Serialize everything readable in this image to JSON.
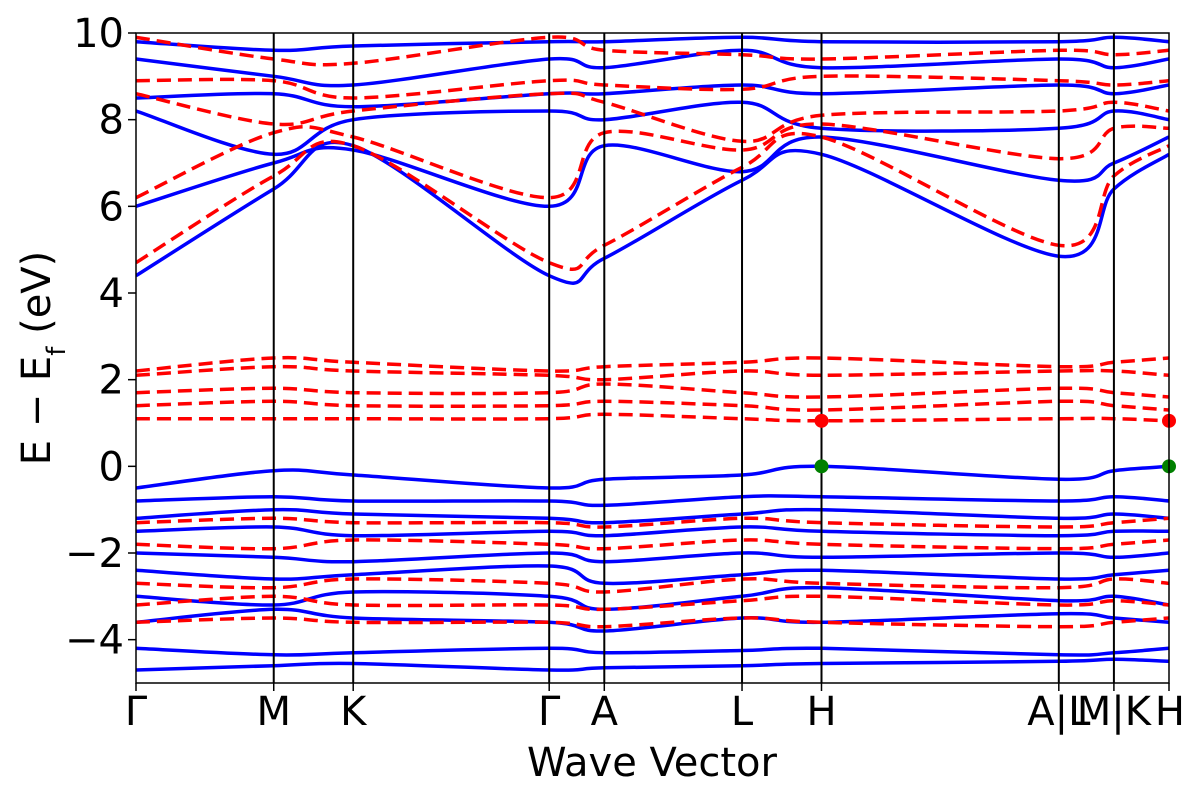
{
  "chart_data": {
    "type": "line",
    "xlabel": "Wave Vector",
    "ylabel_main": "E − E",
    "ylabel_sub": "f",
    "ylabel_unit": " (eV)",
    "ylim": [
      -5,
      10
    ],
    "yticks": [
      -4,
      -2,
      0,
      2,
      4,
      6,
      8,
      10
    ],
    "ytick_labels": [
      "−4",
      "−2",
      "0",
      "2",
      "4",
      "6",
      "8",
      "10"
    ],
    "kpath_positions": [
      0,
      1.0,
      1.577,
      3.0,
      3.4,
      4.4,
      4.977,
      6.7,
      7.1,
      7.5
    ],
    "kpoint_labels": [
      "Γ",
      "M",
      "K",
      "Γ",
      "A",
      "L",
      "H",
      "A|L",
      "M|K",
      "H"
    ],
    "grid": false,
    "legend": "none",
    "colors": {
      "spin_up": "#0000ff",
      "spin_down": "#ff0000",
      "cbm_marker": "#ff0000",
      "vbm_marker": "#008000"
    },
    "series": [
      {
        "style": "solid",
        "bands": [
          {
            "x": [
              0,
              1.0,
              1.577,
              3.0,
              3.4,
              4.4,
              4.977,
              6.7,
              7.1,
              7.5
            ],
            "y": [
              -4.7,
              -4.6,
              -4.55,
              -4.7,
              -4.65,
              -4.6,
              -4.55,
              -4.5,
              -4.45,
              -4.5
            ]
          },
          {
            "x": [
              0,
              1.0,
              1.577,
              3.0,
              3.4,
              4.4,
              4.977,
              6.7,
              7.1,
              7.5
            ],
            "y": [
              -4.2,
              -4.35,
              -4.3,
              -4.2,
              -4.3,
              -4.25,
              -4.2,
              -4.35,
              -4.3,
              -4.2
            ]
          },
          {
            "x": [
              0,
              1.0,
              1.577,
              3.0,
              3.4,
              4.4,
              4.977,
              6.7,
              7.1,
              7.5
            ],
            "y": [
              -3.6,
              -3.3,
              -3.5,
              -3.6,
              -3.8,
              -3.5,
              -3.6,
              -3.4,
              -3.5,
              -3.6
            ]
          },
          {
            "x": [
              0,
              1.0,
              1.577,
              3.0,
              3.4,
              4.4,
              4.977,
              6.7,
              7.1,
              7.5
            ],
            "y": [
              -3.0,
              -3.2,
              -2.9,
              -3.0,
              -3.3,
              -3.0,
              -2.8,
              -3.1,
              -3.0,
              -3.2
            ]
          },
          {
            "x": [
              0,
              1.0,
              1.577,
              3.0,
              3.4,
              4.4,
              4.977,
              6.7,
              7.1,
              7.5
            ],
            "y": [
              -2.4,
              -2.6,
              -2.5,
              -2.3,
              -2.7,
              -2.5,
              -2.4,
              -2.6,
              -2.5,
              -2.4
            ]
          },
          {
            "x": [
              0,
              1.0,
              1.577,
              3.0,
              3.4,
              4.4,
              4.977,
              6.7,
              7.1,
              7.5
            ],
            "y": [
              -2.0,
              -2.1,
              -2.2,
              -2.0,
              -2.2,
              -2.0,
              -2.1,
              -2.0,
              -2.1,
              -2.0
            ]
          },
          {
            "x": [
              0,
              1.0,
              1.577,
              3.0,
              3.4,
              4.4,
              4.977,
              6.7,
              7.1,
              7.5
            ],
            "y": [
              -1.5,
              -1.4,
              -1.6,
              -1.5,
              -1.6,
              -1.4,
              -1.5,
              -1.6,
              -1.5,
              -1.5
            ]
          },
          {
            "x": [
              0,
              1.0,
              1.577,
              3.0,
              3.4,
              4.4,
              4.977,
              6.7,
              7.1,
              7.5
            ],
            "y": [
              -1.2,
              -1.0,
              -1.1,
              -1.2,
              -1.3,
              -1.1,
              -1.0,
              -1.2,
              -1.1,
              -1.2
            ]
          },
          {
            "x": [
              0,
              1.0,
              1.577,
              3.0,
              3.4,
              4.4,
              4.977,
              6.7,
              7.1,
              7.5
            ],
            "y": [
              -0.8,
              -0.7,
              -0.8,
              -0.8,
              -0.9,
              -0.7,
              -0.7,
              -0.8,
              -0.7,
              -0.8
            ]
          },
          {
            "x": [
              0,
              1.0,
              1.577,
              3.0,
              3.4,
              4.4,
              4.977,
              6.7,
              7.1,
              7.5
            ],
            "y": [
              -0.5,
              -0.1,
              -0.2,
              -0.5,
              -0.3,
              -0.2,
              0.0,
              -0.3,
              -0.1,
              0.0
            ]
          },
          {
            "x": [
              0,
              1.0,
              1.577,
              3.0,
              3.4,
              4.4,
              4.977,
              6.7,
              7.1,
              7.5
            ],
            "y": [
              4.4,
              6.4,
              7.4,
              4.4,
              4.8,
              6.6,
              7.2,
              4.85,
              6.4,
              7.2
            ]
          },
          {
            "x": [
              0,
              1.0,
              1.577,
              3.0,
              3.4,
              4.4,
              4.977,
              6.7,
              7.1,
              7.5
            ],
            "y": [
              6.0,
              7.0,
              7.3,
              6.0,
              7.4,
              6.8,
              7.6,
              6.6,
              7.0,
              7.6
            ]
          },
          {
            "x": [
              0,
              1.0,
              1.577,
              3.0,
              3.4,
              4.4,
              4.977,
              6.7,
              7.1,
              7.5
            ],
            "y": [
              8.2,
              7.2,
              8.0,
              8.2,
              8.0,
              8.4,
              7.8,
              7.8,
              8.2,
              8.0
            ]
          },
          {
            "x": [
              0,
              1.0,
              1.577,
              3.0,
              3.4,
              4.4,
              4.977,
              6.7,
              7.1,
              7.5
            ],
            "y": [
              8.5,
              8.6,
              8.3,
              8.6,
              8.6,
              8.8,
              8.6,
              8.8,
              8.6,
              8.8
            ]
          },
          {
            "x": [
              0,
              1.0,
              1.577,
              3.0,
              3.4,
              4.4,
              4.977,
              6.7,
              7.1,
              7.5
            ],
            "y": [
              9.4,
              9.0,
              8.8,
              9.4,
              9.2,
              9.6,
              9.2,
              9.4,
              9.2,
              9.4
            ]
          },
          {
            "x": [
              0,
              1.0,
              1.577,
              3.0,
              3.4,
              4.4,
              4.977,
              6.7,
              7.1,
              7.5
            ],
            "y": [
              9.8,
              9.6,
              9.7,
              9.8,
              9.8,
              9.9,
              9.8,
              9.8,
              9.9,
              9.8
            ]
          }
        ]
      },
      {
        "style": "dashed",
        "bands": [
          {
            "x": [
              0,
              1.0,
              1.577,
              3.0,
              3.4,
              4.4,
              4.977,
              6.7,
              7.1,
              7.5
            ],
            "y": [
              -3.6,
              -3.5,
              -3.6,
              -3.6,
              -3.7,
              -3.5,
              -3.6,
              -3.7,
              -3.6,
              -3.5
            ]
          },
          {
            "x": [
              0,
              1.0,
              1.577,
              3.0,
              3.4,
              4.4,
              4.977,
              6.7,
              7.1,
              7.5
            ],
            "y": [
              -3.2,
              -3.0,
              -3.2,
              -3.2,
              -3.3,
              -3.1,
              -3.0,
              -3.2,
              -3.1,
              -3.2
            ]
          },
          {
            "x": [
              0,
              1.0,
              1.577,
              3.0,
              3.4,
              4.4,
              4.977,
              6.7,
              7.1,
              7.5
            ],
            "y": [
              -2.7,
              -2.8,
              -2.6,
              -2.7,
              -2.9,
              -2.6,
              -2.7,
              -2.8,
              -2.6,
              -2.7
            ]
          },
          {
            "x": [
              0,
              1.0,
              1.577,
              3.0,
              3.4,
              4.4,
              4.977,
              6.7,
              7.1,
              7.5
            ],
            "y": [
              -1.8,
              -1.9,
              -1.7,
              -1.8,
              -1.9,
              -1.7,
              -1.8,
              -1.9,
              -1.8,
              -1.7
            ]
          },
          {
            "x": [
              0,
              1.0,
              1.577,
              3.0,
              3.4,
              4.4,
              4.977,
              6.7,
              7.1,
              7.5
            ],
            "y": [
              -1.3,
              -1.2,
              -1.3,
              -1.3,
              -1.4,
              -1.2,
              -1.3,
              -1.4,
              -1.3,
              -1.2
            ]
          },
          {
            "x": [
              0,
              1.0,
              1.577,
              3.0,
              3.4,
              4.4,
              4.977,
              6.7,
              7.1,
              7.5
            ],
            "y": [
              1.1,
              1.1,
              1.1,
              1.1,
              1.2,
              1.1,
              1.05,
              1.1,
              1.1,
              1.05
            ]
          },
          {
            "x": [
              0,
              1.0,
              1.577,
              3.0,
              3.4,
              4.4,
              4.977,
              6.7,
              7.1,
              7.5
            ],
            "y": [
              1.4,
              1.5,
              1.4,
              1.4,
              1.5,
              1.4,
              1.3,
              1.5,
              1.4,
              1.3
            ]
          },
          {
            "x": [
              0,
              1.0,
              1.577,
              3.0,
              3.4,
              4.4,
              4.977,
              6.7,
              7.1,
              7.5
            ],
            "y": [
              1.7,
              1.8,
              1.7,
              1.7,
              1.9,
              1.7,
              1.6,
              1.8,
              1.7,
              1.6
            ]
          },
          {
            "x": [
              0,
              1.0,
              1.577,
              3.0,
              3.4,
              4.4,
              4.977,
              6.7,
              7.1,
              7.5
            ],
            "y": [
              2.1,
              2.3,
              2.2,
              2.1,
              2.0,
              2.2,
              2.1,
              2.2,
              2.2,
              2.1
            ]
          },
          {
            "x": [
              0,
              1.0,
              1.577,
              3.0,
              3.4,
              4.4,
              4.977,
              6.7,
              7.1,
              7.5
            ],
            "y": [
              2.2,
              2.5,
              2.4,
              2.2,
              2.3,
              2.4,
              2.5,
              2.3,
              2.4,
              2.5
            ]
          },
          {
            "x": [
              0,
              1.0,
              1.577,
              3.0,
              3.4,
              4.4,
              4.977,
              6.7,
              7.1,
              7.5
            ],
            "y": [
              4.7,
              6.7,
              7.4,
              4.7,
              5.1,
              6.9,
              7.6,
              5.1,
              6.7,
              7.4
            ]
          },
          {
            "x": [
              0,
              1.0,
              1.577,
              3.0,
              3.4,
              4.4,
              4.977,
              6.7,
              7.1,
              7.5
            ],
            "y": [
              6.2,
              7.7,
              7.6,
              6.2,
              7.7,
              7.3,
              7.9,
              7.1,
              7.8,
              7.8
            ]
          },
          {
            "x": [
              0,
              1.0,
              1.577,
              3.0,
              3.4,
              4.4,
              4.977,
              6.7,
              7.1,
              7.5
            ],
            "y": [
              8.6,
              7.9,
              8.2,
              8.6,
              8.4,
              7.5,
              8.1,
              8.2,
              8.4,
              8.2
            ]
          },
          {
            "x": [
              0,
              1.0,
              1.577,
              3.0,
              3.4,
              4.4,
              4.977,
              6.7,
              7.1,
              7.5
            ],
            "y": [
              8.9,
              8.9,
              8.5,
              8.9,
              8.8,
              8.7,
              9.0,
              8.9,
              8.8,
              8.9
            ]
          },
          {
            "x": [
              0,
              1.0,
              1.577,
              3.0,
              3.4,
              4.4,
              4.977,
              6.7,
              7.1,
              7.5
            ],
            "y": [
              9.9,
              9.4,
              9.3,
              9.9,
              9.6,
              9.5,
              9.4,
              9.6,
              9.5,
              9.6
            ]
          }
        ]
      }
    ],
    "markers": [
      {
        "x": 4.977,
        "y": 1.05,
        "color": "cbm"
      },
      {
        "x": 4.977,
        "y": 0.0,
        "color": "vbm"
      },
      {
        "x": 7.5,
        "y": 1.05,
        "color": "cbm"
      },
      {
        "x": 7.5,
        "y": 0.0,
        "color": "vbm"
      }
    ]
  }
}
